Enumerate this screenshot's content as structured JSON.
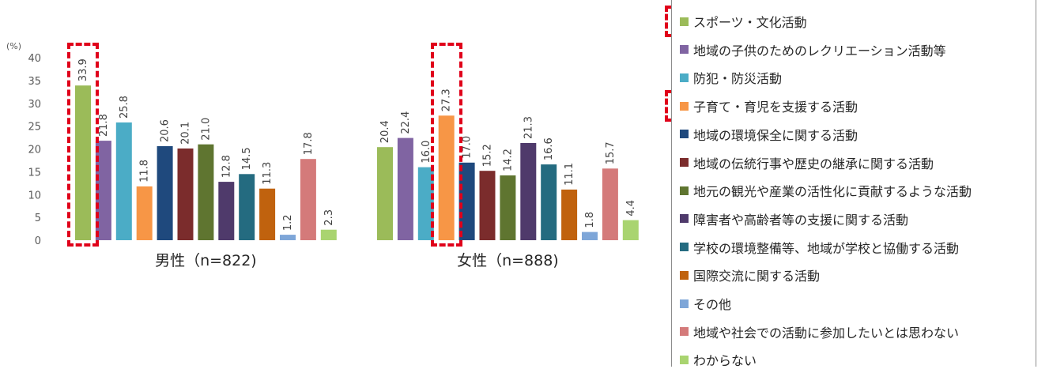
{
  "chart_data": {
    "type": "bar",
    "unit_label": "(%)",
    "categories": [
      "男性（n=822)",
      "女性（n=888)"
    ],
    "ylim": [
      0,
      40
    ],
    "yticks": [
      0,
      5,
      10,
      15,
      20,
      25,
      30,
      35,
      40
    ],
    "grid": false,
    "legend_position": "right",
    "series": [
      {
        "name": "スポーツ・文化活動",
        "color": "#9bbb59",
        "values": [
          33.9,
          20.4
        ]
      },
      {
        "name": "地域の子供のためのレクリエーション活動等",
        "color": "#8064a2",
        "values": [
          21.8,
          22.4
        ]
      },
      {
        "name": "防犯・防災活動",
        "color": "#4bacc6",
        "values": [
          25.8,
          16.0
        ]
      },
      {
        "name": "子育て・育児を支援する活動",
        "color": "#f79646",
        "values": [
          11.8,
          27.3
        ]
      },
      {
        "name": "地域の環境保全に関する活動",
        "color": "#1f497d",
        "values": [
          20.6,
          17.0
        ]
      },
      {
        "name": "地域の伝統行事や歴史の継承に関する活動",
        "color": "#7b2c2c",
        "values": [
          20.1,
          15.2
        ]
      },
      {
        "name": "地元の観光や産業の活性化に貢献するような活動",
        "color": "#5f7530",
        "values": [
          21.0,
          14.2
        ]
      },
      {
        "name": "障害者や高齢者等の支援に関する活動",
        "color": "#4f3a6b",
        "values": [
          12.8,
          21.3
        ]
      },
      {
        "name": "学校の環境整備等、地域が学校と協働する活動",
        "color": "#246b80",
        "values": [
          14.5,
          16.6
        ]
      },
      {
        "name": "国際交流に関する活動",
        "color": "#c0620e",
        "values": [
          11.3,
          11.1
        ]
      },
      {
        "name": "その他",
        "color": "#7ea6d8",
        "values": [
          1.2,
          1.8
        ]
      },
      {
        "name": "地域や社会での活動に参加したいとは思わない",
        "color": "#d47a7a",
        "values": [
          17.8,
          15.7
        ]
      },
      {
        "name": "わからない",
        "color": "#a9d470",
        "values": [
          2.3,
          4.4
        ]
      }
    ],
    "value_labels": [
      [
        "33.9",
        "21.8",
        "25.8",
        "11.8",
        "20.6",
        "20.1",
        "21.0",
        "12.8",
        "14.5",
        "11.3",
        "1.2",
        "17.8",
        "2.3"
      ],
      [
        "20.4",
        "22.4",
        "16.0",
        "27.3",
        "17.0",
        "15.2",
        "14.2",
        "21.3",
        "16.6",
        "11.1",
        "1.8",
        "15.7",
        "4.4"
      ]
    ],
    "highlighted": {
      "bars": [
        [
          0,
          0
        ],
        [
          1,
          3
        ]
      ],
      "legend_items": [
        0,
        3
      ],
      "color": "#e0001a"
    }
  }
}
